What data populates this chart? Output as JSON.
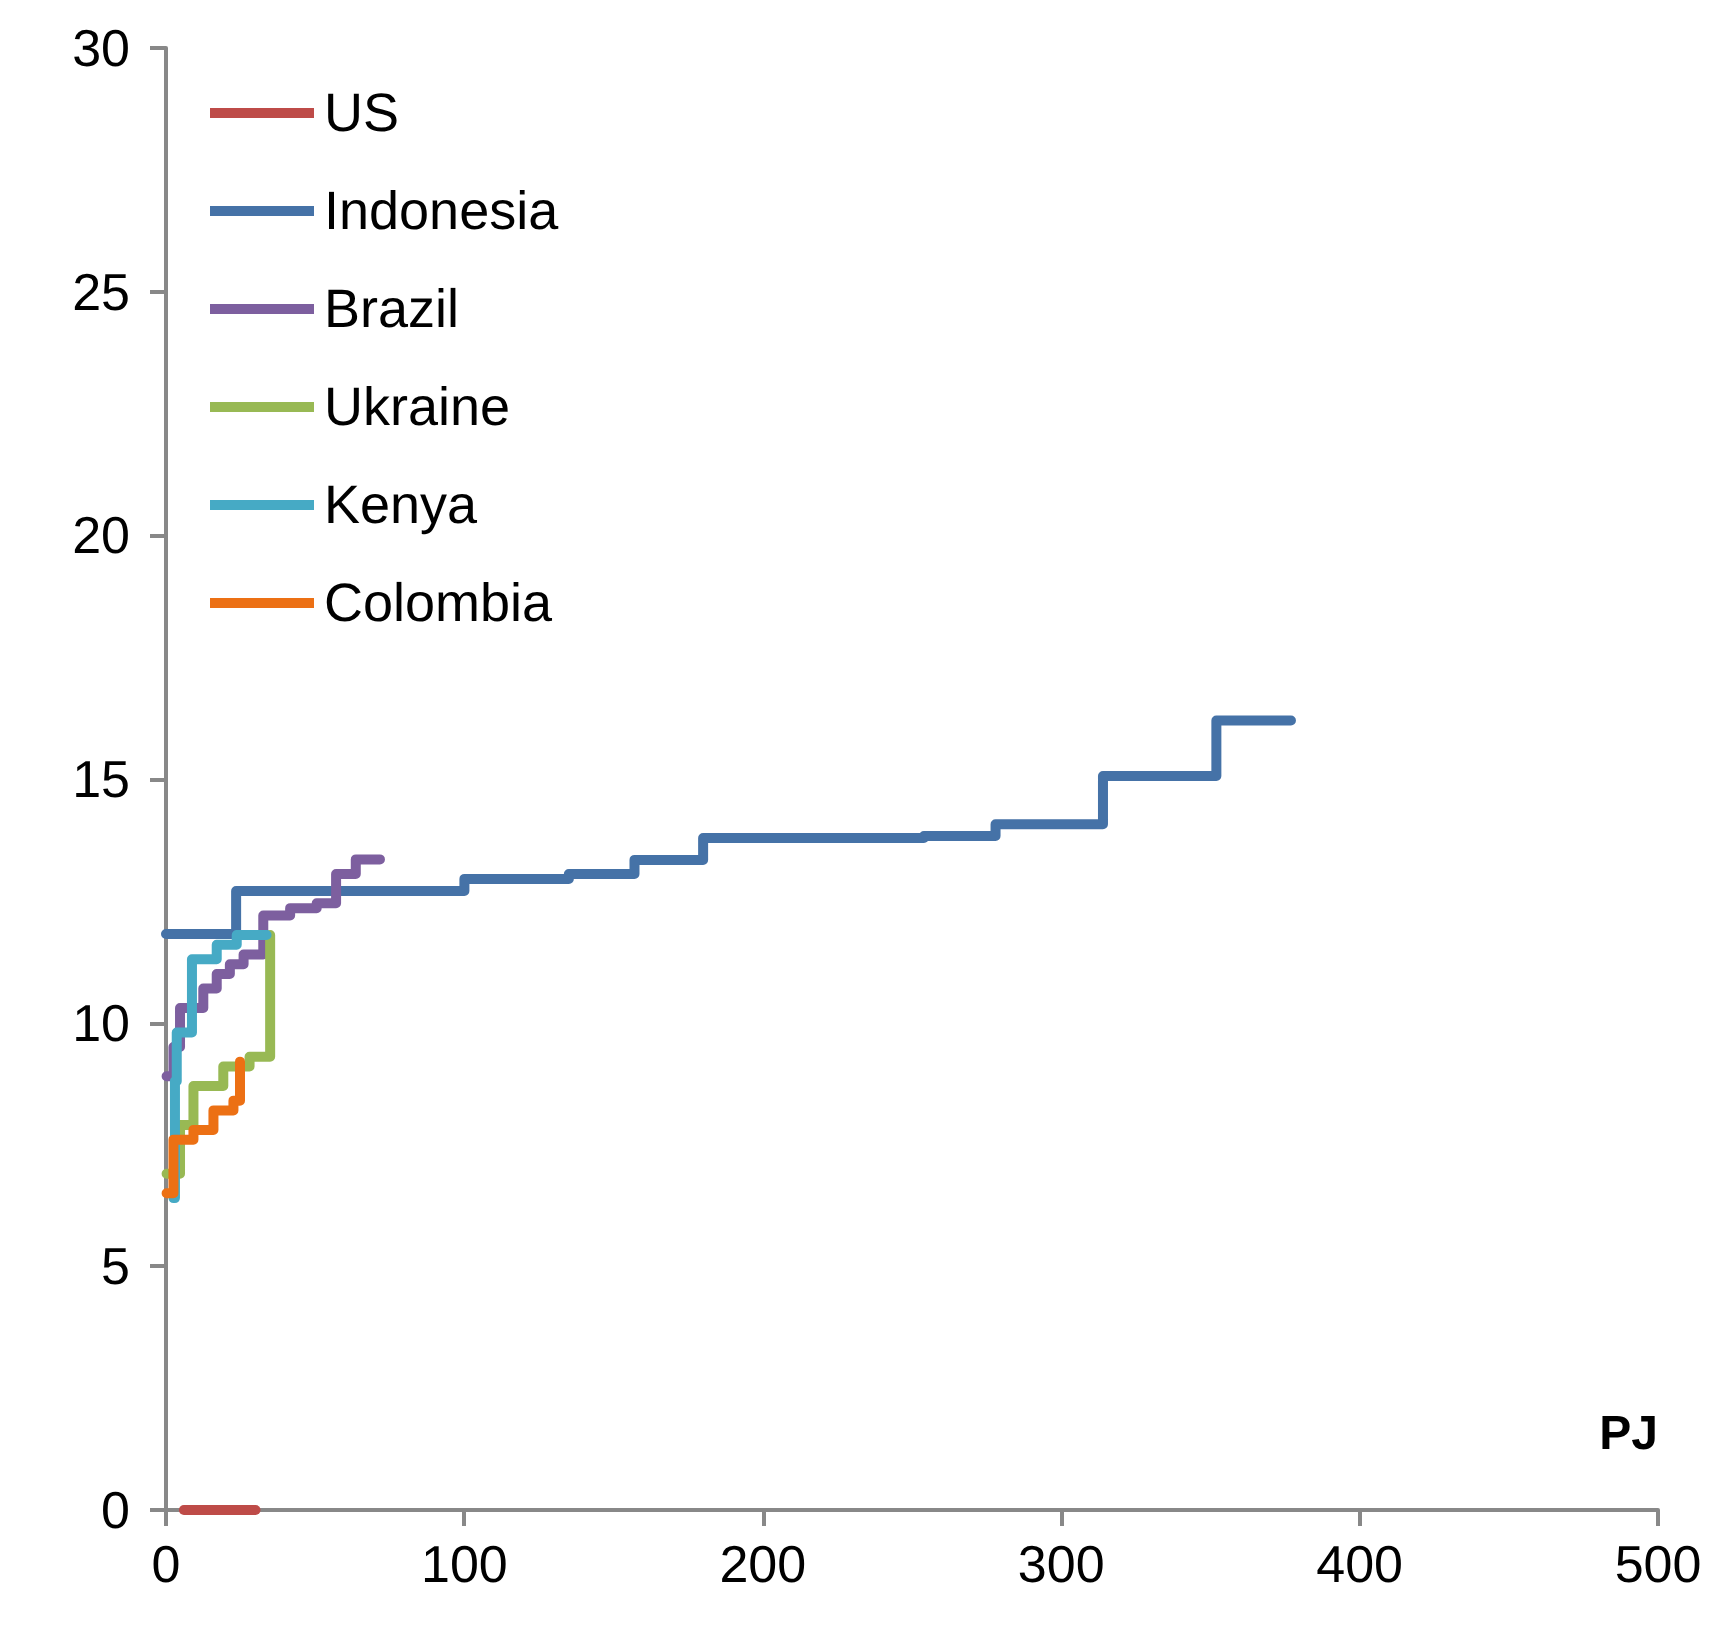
{
  "chart_data": {
    "type": "step",
    "xlabel": "PJ",
    "xlim": [
      0,
      500
    ],
    "xticks": [
      0,
      100,
      200,
      300,
      400,
      500
    ],
    "ylim": [
      0,
      30
    ],
    "yticks": [
      0,
      5,
      10,
      15,
      20,
      25,
      30
    ],
    "grid": false,
    "legend": "top left",
    "marker": "none",
    "line_style": "solid",
    "series": [
      {
        "name": "US",
        "color": "#be4b48",
        "x": [
          6,
          30
        ],
        "values": [
          0,
          0
        ]
      },
      {
        "name": "Indonesia",
        "color": "#4572a7",
        "x": [
          0,
          23.5,
          100,
          135,
          157,
          180,
          254,
          278,
          314,
          352,
          377
        ],
        "values": [
          11.82,
          12.7,
          12.95,
          13.05,
          13.34,
          13.79,
          13.83,
          14.07,
          15.06,
          16.2,
          16.2
        ]
      },
      {
        "name": "Brazil",
        "color": "#7d5f9f",
        "x": [
          0.2,
          2.5,
          4.7,
          12.5,
          17,
          21.4,
          26,
          32.6,
          41.6,
          50.5,
          57,
          63.6,
          71.7
        ],
        "values": [
          8.9,
          9.5,
          10.3,
          10.7,
          11,
          11.2,
          11.4,
          12.2,
          12.35,
          12.45,
          13.05,
          13.35,
          13.35
        ]
      },
      {
        "name": "Ukraine",
        "color": "#98b954",
        "x": [
          0.2,
          4.7,
          9.2,
          19.2,
          28,
          34.9,
          34.9
        ],
        "values": [
          6.9,
          7.9,
          8.7,
          9.1,
          9.3,
          9.6,
          11.8
        ]
      },
      {
        "name": "Kenya",
        "color": "#46aac5",
        "x": [
          2.5,
          3,
          3.6,
          8.7,
          17,
          23.7,
          33.7
        ],
        "values": [
          6.4,
          8.8,
          9.8,
          11.3,
          11.6,
          11.8,
          11.8
        ]
      },
      {
        "name": "Colombia",
        "color": "#ec7014",
        "x": [
          0.2,
          2.5,
          9.2,
          15.9,
          22.6,
          24.8
        ],
        "values": [
          6.5,
          7.6,
          7.8,
          8.2,
          8.4,
          9.2
        ]
      }
    ]
  }
}
